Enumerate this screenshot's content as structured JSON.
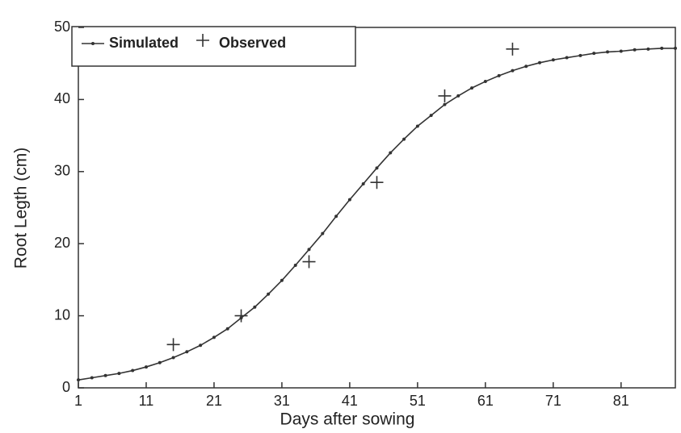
{
  "chart_data": {
    "type": "line",
    "x_label": "Days after sowing",
    "y_label": "Root Legth (cm)",
    "xlim": [
      1,
      89
    ],
    "ylim": [
      0,
      50
    ],
    "xticks": [
      1,
      11,
      21,
      31,
      41,
      51,
      61,
      71,
      81
    ],
    "yticks": [
      0,
      10,
      20,
      30,
      40,
      50
    ],
    "legend": "upper left",
    "series": [
      {
        "name": "Simulated",
        "color": "#333333",
        "marker": "dot",
        "line": true,
        "x": [
          1,
          3,
          5,
          7,
          9,
          11,
          13,
          15,
          17,
          19,
          21,
          23,
          25,
          27,
          29,
          31,
          33,
          35,
          37,
          39,
          41,
          43,
          45,
          47,
          49,
          51,
          53,
          55,
          57,
          59,
          61,
          63,
          65,
          67,
          69,
          71,
          73,
          75,
          77,
          79,
          81,
          83,
          85,
          87,
          89
        ],
        "values": [
          1.1,
          1.4,
          1.7,
          2.0,
          2.4,
          2.9,
          3.5,
          4.2,
          5.0,
          5.9,
          7.0,
          8.2,
          9.7,
          11.2,
          13.0,
          14.9,
          17.0,
          19.2,
          21.4,
          23.8,
          26.1,
          28.3,
          30.5,
          32.6,
          34.5,
          36.3,
          37.8,
          39.3,
          40.5,
          41.6,
          42.5,
          43.3,
          44.0,
          44.6,
          45.1,
          45.5,
          45.8,
          46.1,
          46.4,
          46.6,
          46.7,
          46.9,
          47.0,
          47.1,
          47.1
        ]
      },
      {
        "name": "Observed",
        "color": "#333333",
        "marker": "plus",
        "line": false,
        "x": [
          15,
          25,
          35,
          45,
          55,
          65
        ],
        "values": [
          6,
          10,
          17.5,
          28.5,
          40.5,
          47
        ]
      }
    ]
  }
}
